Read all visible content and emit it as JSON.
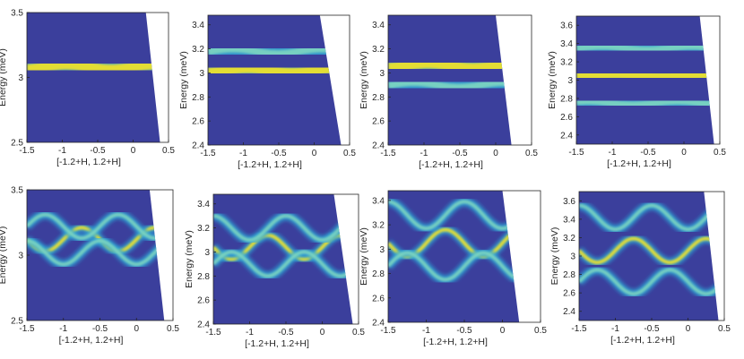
{
  "chart_data": [
    {
      "type": "heatmap",
      "row": "measured",
      "xlabel": "[-1.2+H, 1.2+H]",
      "ylabel": "Energy (meV)",
      "xlim": [
        -1.5,
        0.5
      ],
      "ylim": [
        2.5,
        3.5
      ],
      "xticks": [
        "-1.5",
        "-1",
        "-0.5",
        "0",
        "0.5"
      ],
      "yticks": [
        "2.5",
        "3",
        "3.5"
      ],
      "bands": [
        3.08
      ],
      "modulation": 0.0,
      "cutoff": [
        [
          0.18,
          3.5
        ],
        [
          0.38,
          2.5
        ]
      ]
    },
    {
      "type": "heatmap",
      "row": "measured",
      "xlabel": "[-1.2+H, 1.2+H]",
      "ylabel": "Energy (meV)",
      "xlim": [
        -1.5,
        0.5
      ],
      "ylim": [
        2.4,
        3.48
      ],
      "xticks": [
        "-1.5",
        "-1",
        "-0.5",
        "0",
        "0.5"
      ],
      "yticks": [
        "2.4",
        "2.6",
        "2.8",
        "3",
        "3.2",
        "3.4"
      ],
      "bands": [
        3.02,
        3.18
      ],
      "modulation": 0.0,
      "cutoff": [
        [
          0.08,
          3.48
        ],
        [
          0.38,
          2.4
        ]
      ]
    },
    {
      "type": "heatmap",
      "row": "measured",
      "xlabel": "[-1.2+H, 1.2+H]",
      "ylabel": "Energy (meV)",
      "xlim": [
        -1.5,
        0.5
      ],
      "ylim": [
        2.4,
        3.48
      ],
      "xticks": [
        "-1.5",
        "-1",
        "-0.5",
        "0",
        "0.5"
      ],
      "yticks": [
        "2.4",
        "2.6",
        "2.8",
        "3",
        "3.2",
        "3.4"
      ],
      "bands": [
        3.06,
        2.9
      ],
      "modulation": 0.0,
      "cutoff": [
        [
          0.0,
          3.48
        ],
        [
          0.22,
          2.4
        ]
      ]
    },
    {
      "type": "heatmap",
      "row": "measured",
      "xlabel": "[-1.2+H, 1.2+H]",
      "ylabel": "Energy (meV)",
      "xlim": [
        -1.5,
        0.5
      ],
      "ylim": [
        2.3,
        3.7
      ],
      "xticks": [
        "-1.5",
        "-1",
        "-0.5",
        "0",
        "0.5"
      ],
      "yticks": [
        "2.4",
        "2.6",
        "2.8",
        "3",
        "3.2",
        "3.4",
        "3.6"
      ],
      "bands": [
        3.05,
        3.35,
        2.75
      ],
      "modulation": 0.0,
      "cutoff": [
        [
          0.22,
          3.7
        ],
        [
          0.42,
          2.3
        ]
      ]
    },
    {
      "type": "heatmap",
      "row": "calculated",
      "xlabel": "[-1.2+H, 1.2+H]",
      "ylabel": "Energy (meV)",
      "xlim": [
        -1.5,
        0.5
      ],
      "ylim": [
        2.5,
        3.5
      ],
      "xticks": [
        "-1.5",
        "-1",
        "-0.5",
        "0",
        "0.5"
      ],
      "yticks": [
        "2.5",
        "3",
        "3.5"
      ],
      "bands": [
        3.12,
        3.02,
        3.22
      ],
      "modulation": 0.09,
      "cutoff": [
        [
          0.18,
          3.5
        ],
        [
          0.38,
          2.5
        ]
      ]
    },
    {
      "type": "heatmap",
      "row": "calculated",
      "xlabel": "[-1.2+H, 1.2+H]",
      "ylabel": "Energy (meV)",
      "xlim": [
        -1.5,
        0.5
      ],
      "ylim": [
        2.4,
        3.48
      ],
      "xticks": [
        "-1.5",
        "-1",
        "-0.5",
        "0",
        "0.5"
      ],
      "yticks": [
        "2.4",
        "2.6",
        "2.8",
        "3",
        "3.2",
        "3.4"
      ],
      "bands": [
        3.04,
        3.2,
        2.9
      ],
      "modulation": 0.1,
      "cutoff": [
        [
          0.16,
          3.48
        ],
        [
          0.42,
          2.4
        ]
      ]
    },
    {
      "type": "heatmap",
      "row": "calculated",
      "xlabel": "[-1.2+H, 1.2+H]",
      "ylabel": "Energy (meV)",
      "xlim": [
        -1.5,
        0.5
      ],
      "ylim": [
        2.4,
        3.48
      ],
      "xticks": [
        "-1.5",
        "-1",
        "-0.5",
        "0",
        "0.5"
      ],
      "yticks": [
        "2.4",
        "2.6",
        "2.8",
        "3",
        "3.2",
        "3.4"
      ],
      "bands": [
        3.05,
        3.28,
        2.86
      ],
      "modulation": 0.11,
      "cutoff": [
        [
          0.0,
          3.48
        ],
        [
          0.22,
          2.4
        ]
      ]
    },
    {
      "type": "heatmap",
      "row": "calculated",
      "xlabel": "[-1.2+H, 1.2+H]",
      "ylabel": "Energy (meV)",
      "xlim": [
        -1.5,
        0.5
      ],
      "ylim": [
        2.3,
        3.7
      ],
      "xticks": [
        "-1.5",
        "-1",
        "-0.5",
        "0",
        "0.5"
      ],
      "yticks": [
        "2.4",
        "2.6",
        "2.8",
        "3",
        "3.2",
        "3.4",
        "3.6"
      ],
      "bands": [
        3.06,
        3.42,
        2.72
      ],
      "modulation": 0.13,
      "cutoff": [
        [
          0.22,
          3.7
        ],
        [
          0.42,
          2.3
        ]
      ]
    }
  ],
  "colors": {
    "background": "#3b3f9c",
    "mid": "#2da8d8",
    "high": "#f7e624"
  }
}
